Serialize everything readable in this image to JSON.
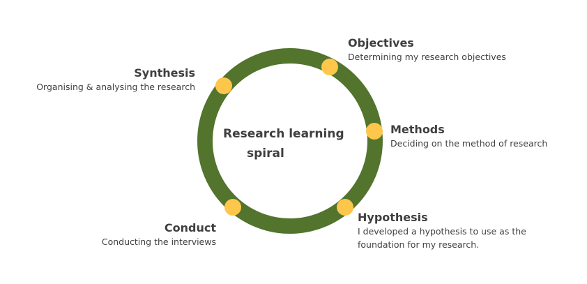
{
  "diagram": {
    "center_title_line1": "Research learning",
    "center_title_line2": "spiral",
    "colors": {
      "ring": "#52742d",
      "node": "#fec64a",
      "text": "#3f3f3f"
    },
    "steps": [
      {
        "key": "objectives",
        "title": "Objectives",
        "description": "Determining  my research objectives"
      },
      {
        "key": "methods",
        "title": "Methods",
        "description": "Deciding on the method of research"
      },
      {
        "key": "hypothesis",
        "title": "Hypothesis",
        "description": "I developed a hypothesis to use as the\nfoundation for my research."
      },
      {
        "key": "conduct",
        "title": "Conduct",
        "description": "Conducting the interviews"
      },
      {
        "key": "synthesis",
        "title": "Synthesis",
        "description": "Organising & analysing the research"
      }
    ]
  }
}
